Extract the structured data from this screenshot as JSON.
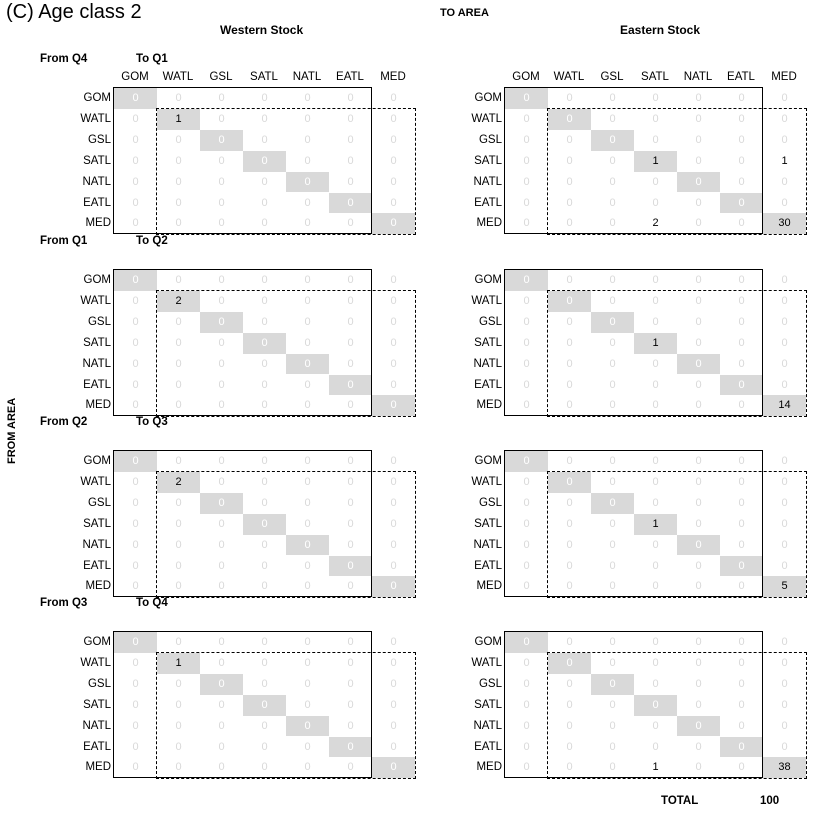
{
  "title": "(C) Age class 2",
  "header": {
    "to_area": "TO AREA",
    "from_area": "FROM AREA",
    "western_stock": "Western Stock",
    "eastern_stock": "Eastern Stock"
  },
  "footer": {
    "total_label": "TOTAL",
    "total_value": "100"
  },
  "chart_data": {
    "type": "table",
    "areas": [
      "GOM",
      "WATL",
      "GSL",
      "SATL",
      "NATL",
      "EATL",
      "MED"
    ],
    "stocks": [
      "Western Stock",
      "Eastern Stock"
    ],
    "periods": [
      {
        "from": "From Q4",
        "to": "To Q1",
        "western": [
          [
            0,
            0,
            0,
            0,
            0,
            0,
            0
          ],
          [
            0,
            1,
            0,
            0,
            0,
            0,
            0
          ],
          [
            0,
            0,
            0,
            0,
            0,
            0,
            0
          ],
          [
            0,
            0,
            0,
            0,
            0,
            0,
            0
          ],
          [
            0,
            0,
            0,
            0,
            0,
            0,
            0
          ],
          [
            0,
            0,
            0,
            0,
            0,
            0,
            0
          ],
          [
            0,
            0,
            0,
            0,
            0,
            0,
            0
          ]
        ],
        "eastern": [
          [
            0,
            0,
            0,
            0,
            0,
            0,
            0
          ],
          [
            0,
            0,
            0,
            0,
            0,
            0,
            0
          ],
          [
            0,
            0,
            0,
            0,
            0,
            0,
            0
          ],
          [
            0,
            0,
            0,
            1,
            0,
            0,
            1
          ],
          [
            0,
            0,
            0,
            0,
            0,
            0,
            0
          ],
          [
            0,
            0,
            0,
            0,
            0,
            0,
            0
          ],
          [
            0,
            0,
            0,
            2,
            0,
            0,
            30
          ]
        ]
      },
      {
        "from": "From Q1",
        "to": "To  Q2",
        "western": [
          [
            0,
            0,
            0,
            0,
            0,
            0,
            0
          ],
          [
            0,
            2,
            0,
            0,
            0,
            0,
            0
          ],
          [
            0,
            0,
            0,
            0,
            0,
            0,
            0
          ],
          [
            0,
            0,
            0,
            0,
            0,
            0,
            0
          ],
          [
            0,
            0,
            0,
            0,
            0,
            0,
            0
          ],
          [
            0,
            0,
            0,
            0,
            0,
            0,
            0
          ],
          [
            0,
            0,
            0,
            0,
            0,
            0,
            0
          ]
        ],
        "eastern": [
          [
            0,
            0,
            0,
            0,
            0,
            0,
            0
          ],
          [
            0,
            0,
            0,
            0,
            0,
            0,
            0
          ],
          [
            0,
            0,
            0,
            0,
            0,
            0,
            0
          ],
          [
            0,
            0,
            0,
            1,
            0,
            0,
            0
          ],
          [
            0,
            0,
            0,
            0,
            0,
            0,
            0
          ],
          [
            0,
            0,
            0,
            0,
            0,
            0,
            0
          ],
          [
            0,
            0,
            0,
            0,
            0,
            0,
            14
          ]
        ]
      },
      {
        "from": "From Q2",
        "to": "To Q3",
        "western": [
          [
            0,
            0,
            0,
            0,
            0,
            0,
            0
          ],
          [
            0,
            2,
            0,
            0,
            0,
            0,
            0
          ],
          [
            0,
            0,
            0,
            0,
            0,
            0,
            0
          ],
          [
            0,
            0,
            0,
            0,
            0,
            0,
            0
          ],
          [
            0,
            0,
            0,
            0,
            0,
            0,
            0
          ],
          [
            0,
            0,
            0,
            0,
            0,
            0,
            0
          ],
          [
            0,
            0,
            0,
            0,
            0,
            0,
            0
          ]
        ],
        "eastern": [
          [
            0,
            0,
            0,
            0,
            0,
            0,
            0
          ],
          [
            0,
            0,
            0,
            0,
            0,
            0,
            0
          ],
          [
            0,
            0,
            0,
            0,
            0,
            0,
            0
          ],
          [
            0,
            0,
            0,
            1,
            0,
            0,
            0
          ],
          [
            0,
            0,
            0,
            0,
            0,
            0,
            0
          ],
          [
            0,
            0,
            0,
            0,
            0,
            0,
            0
          ],
          [
            0,
            0,
            0,
            0,
            0,
            0,
            5
          ]
        ]
      },
      {
        "from": "From Q3",
        "to": "To Q4",
        "western": [
          [
            0,
            0,
            0,
            0,
            0,
            0,
            0
          ],
          [
            0,
            1,
            0,
            0,
            0,
            0,
            0
          ],
          [
            0,
            0,
            0,
            0,
            0,
            0,
            0
          ],
          [
            0,
            0,
            0,
            0,
            0,
            0,
            0
          ],
          [
            0,
            0,
            0,
            0,
            0,
            0,
            0
          ],
          [
            0,
            0,
            0,
            0,
            0,
            0,
            0
          ],
          [
            0,
            0,
            0,
            0,
            0,
            0,
            0
          ]
        ],
        "eastern": [
          [
            0,
            0,
            0,
            0,
            0,
            0,
            0
          ],
          [
            0,
            0,
            0,
            0,
            0,
            0,
            0
          ],
          [
            0,
            0,
            0,
            0,
            0,
            0,
            0
          ],
          [
            0,
            0,
            0,
            0,
            0,
            0,
            0
          ],
          [
            0,
            0,
            0,
            0,
            0,
            0,
            0
          ],
          [
            0,
            0,
            0,
            0,
            0,
            0,
            0
          ],
          [
            0,
            0,
            0,
            1,
            0,
            0,
            38
          ]
        ]
      }
    ]
  },
  "colors": {
    "diagonal_fill": "#d9d9d9",
    "zero_text": "#d9d9d9"
  }
}
